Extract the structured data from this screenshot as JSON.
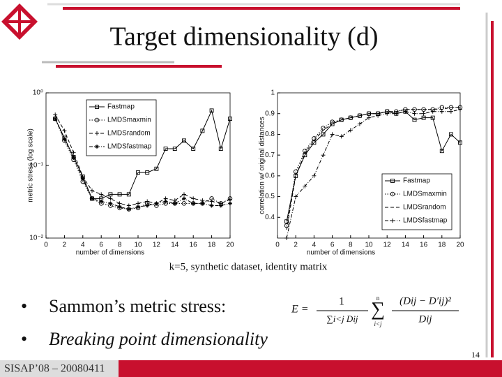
{
  "slide": {
    "title": "Target dimensionality (d)",
    "caption": "k=5, synthetic dataset, identity matrix",
    "bullets": [
      "Sammon’s metric stress:",
      "Breaking point dimensionality"
    ],
    "formula": {
      "lhs": "E =",
      "num": "1",
      "den": "∑i<j Dij",
      "sum": "∑",
      "sum_top": "n",
      "sum_bottom": "i<j",
      "frac_num": "(Dij − D′ij)²",
      "frac_den": "Dij"
    },
    "footer": "SISAP’08 – 20080411",
    "page": "14"
  },
  "chart_data": [
    {
      "type": "line",
      "xlabel": "number of dimensions",
      "ylabel": "metric stress (log scale)",
      "log_y": true,
      "legend": "upper left",
      "x": [
        1,
        2,
        3,
        4,
        5,
        6,
        7,
        8,
        9,
        10,
        11,
        12,
        13,
        14,
        15,
        16,
        17,
        18,
        19,
        20
      ],
      "xlim": [
        0,
        20
      ],
      "xticks": [
        0,
        2,
        4,
        6,
        8,
        10,
        12,
        14,
        16,
        18,
        20
      ],
      "ylim": [
        0.01,
        1
      ],
      "yticks": [
        {
          "value": 0.01,
          "label": "10⁻²"
        },
        {
          "value": 0.1,
          "label": "10⁻¹"
        },
        {
          "value": 1,
          "label": "10⁰"
        }
      ],
      "series": [
        {
          "name": "Fastmap",
          "color": "#000000",
          "marker": "square",
          "linestyle": "solid",
          "values": [
            0.44,
            0.24,
            0.13,
            0.07,
            0.035,
            0.035,
            0.04,
            0.04,
            0.04,
            0.08,
            0.08,
            0.09,
            0.17,
            0.17,
            0.22,
            0.17,
            0.3,
            0.57,
            0.17,
            0.44
          ]
        },
        {
          "name": "LMDSmaxmin",
          "color": "#000000",
          "marker": "circle",
          "linestyle": "dotted",
          "values": [
            0.44,
            0.22,
            0.12,
            0.06,
            0.035,
            0.03,
            0.028,
            0.026,
            0.025,
            0.026,
            0.03,
            0.028,
            0.03,
            0.03,
            0.03,
            0.03,
            0.03,
            0.035,
            0.03,
            0.035
          ]
        },
        {
          "name": "LMDSrandom",
          "color": "#000000",
          "marker": "plus",
          "linestyle": "dashed",
          "values": [
            0.5,
            0.3,
            0.15,
            0.07,
            0.045,
            0.04,
            0.035,
            0.03,
            0.028,
            0.03,
            0.032,
            0.03,
            0.035,
            0.033,
            0.04,
            0.035,
            0.033,
            0.032,
            0.03,
            0.034
          ]
        },
        {
          "name": "LMDSfastmap",
          "color": "#000000",
          "marker": "star",
          "linestyle": "dashdot",
          "values": [
            0.44,
            0.23,
            0.13,
            0.065,
            0.035,
            0.032,
            0.03,
            0.027,
            0.025,
            0.027,
            0.028,
            0.03,
            0.032,
            0.03,
            0.035,
            0.03,
            0.03,
            0.028,
            0.028,
            0.03
          ]
        }
      ]
    },
    {
      "type": "line",
      "xlabel": "number of dimensions",
      "ylabel": "correlation w/ original distances",
      "log_y": false,
      "legend": "lower right",
      "x": [
        1,
        2,
        3,
        4,
        5,
        6,
        7,
        8,
        9,
        10,
        11,
        12,
        13,
        14,
        15,
        16,
        17,
        18,
        19,
        20
      ],
      "xlim": [
        0,
        20
      ],
      "xticks": [
        0,
        2,
        4,
        6,
        8,
        10,
        12,
        14,
        16,
        18,
        20
      ],
      "ylim": [
        0.3,
        1
      ],
      "yticks": [
        0.4,
        0.5,
        0.6,
        0.7,
        0.8,
        0.9,
        1
      ],
      "series": [
        {
          "name": "Fastmap",
          "color": "#000000",
          "marker": "square",
          "linestyle": "solid",
          "values": [
            0.38,
            0.6,
            0.7,
            0.76,
            0.8,
            0.85,
            0.87,
            0.88,
            0.89,
            0.9,
            0.9,
            0.91,
            0.9,
            0.91,
            0.87,
            0.88,
            0.88,
            0.72,
            0.8,
            0.76
          ]
        },
        {
          "name": "LMDSmaxmin",
          "color": "#000000",
          "marker": "circle",
          "linestyle": "dotted",
          "values": [
            0.36,
            0.62,
            0.72,
            0.78,
            0.83,
            0.86,
            0.87,
            0.88,
            0.89,
            0.9,
            0.9,
            0.91,
            0.91,
            0.92,
            0.92,
            0.92,
            0.92,
            0.93,
            0.93,
            0.93
          ]
        },
        {
          "name": "LMDSrandom",
          "color": "#000000",
          "marker": "none",
          "linestyle": "dashed",
          "values": [
            0.34,
            0.6,
            0.71,
            0.77,
            0.82,
            0.85,
            0.87,
            0.88,
            0.89,
            0.9,
            0.9,
            0.91,
            0.91,
            0.92,
            0.92,
            0.92,
            0.92,
            0.92,
            0.93,
            0.93
          ]
        },
        {
          "name": "LMDSfastmap",
          "color": "#000000",
          "marker": "plus",
          "linestyle": "dashdot",
          "values": [
            0.3,
            0.5,
            0.55,
            0.6,
            0.7,
            0.8,
            0.79,
            0.82,
            0.85,
            0.88,
            0.89,
            0.9,
            0.9,
            0.91,
            0.9,
            0.9,
            0.91,
            0.91,
            0.91,
            0.92
          ]
        }
      ]
    }
  ]
}
